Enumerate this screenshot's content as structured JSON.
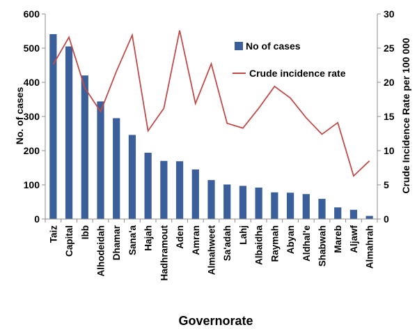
{
  "chart_data": {
    "type": "bar",
    "title": "",
    "xlabel": "Governorate",
    "ylabel": "No. of cases",
    "y2label": "Crude Incidence Rate per 100 000",
    "ylim": [
      0,
      600
    ],
    "y2lim": [
      0,
      30
    ],
    "yticks": [
      0,
      100,
      200,
      300,
      400,
      500,
      600
    ],
    "y2ticks": [
      0,
      5,
      10,
      15,
      20,
      25,
      30
    ],
    "grid": false,
    "legend_position": "top-right",
    "categories": [
      "Taiz",
      "Capital",
      "Ibb",
      "Alhodeidah",
      "Dhamar",
      "Sana'a",
      "Hajah",
      "Hadhramout",
      "Aden",
      "Amran",
      "Almahweet",
      "Sa'adah",
      "Lahj",
      "Albaidha",
      "Raymah",
      "Abyan",
      "Aldhal'e",
      "Shabwah",
      "Mareb",
      "Aljawf",
      "Almahrah"
    ],
    "series": [
      {
        "name": "No of cases",
        "type": "bar",
        "axis": "left",
        "color": "#3a5f9b",
        "values": [
          541,
          505,
          420,
          344,
          295,
          246,
          194,
          170,
          169,
          145,
          114,
          101,
          97,
          92,
          78,
          77,
          73,
          59,
          34,
          27,
          9
        ]
      },
      {
        "name": "Crude incidence rate",
        "type": "line",
        "axis": "right",
        "color": "#bf4b49",
        "values": [
          22.6,
          26.6,
          19.2,
          15.7,
          21.6,
          26.9,
          12.9,
          16.2,
          27.6,
          16.9,
          22.7,
          14.0,
          13.3,
          16.2,
          19.4,
          17.7,
          14.8,
          12.4,
          14.1,
          6.3,
          8.5
        ]
      }
    ]
  }
}
